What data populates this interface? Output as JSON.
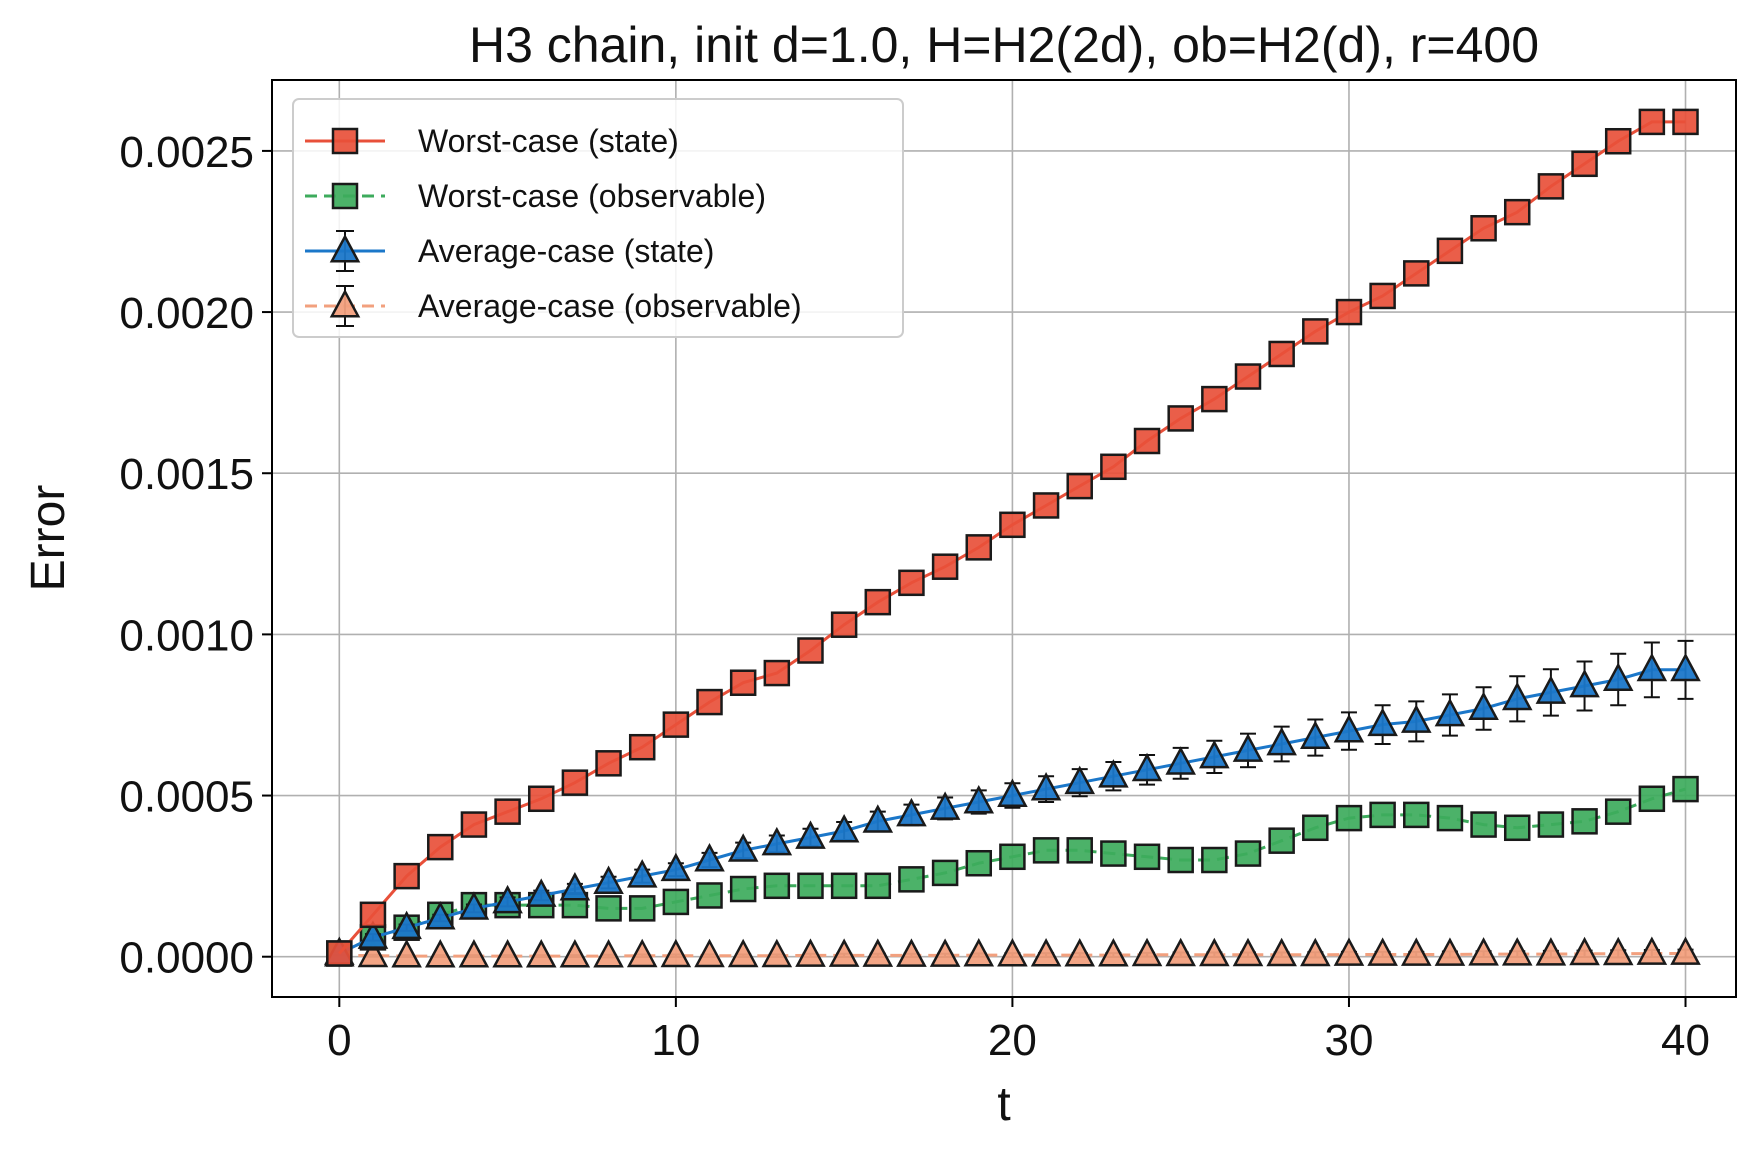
{
  "chart_data": {
    "type": "line",
    "title": "H3 chain, init d=1.0, H=H2(2d), ob=H2(d), r=400",
    "xlabel": "t",
    "ylabel": "Error",
    "xlim": [
      -2,
      41.5
    ],
    "ylim": [
      -0.000125,
      0.00272
    ],
    "xticks": [
      0,
      10,
      20,
      30,
      40
    ],
    "xtick_labels": [
      "0",
      "10",
      "20",
      "30",
      "40"
    ],
    "yticks": [
      0,
      0.0005,
      0.001,
      0.0015,
      0.002,
      0.0025
    ],
    "ytick_labels": [
      "0.0000",
      "0.0005",
      "0.0010",
      "0.0015",
      "0.0020",
      "0.0025"
    ],
    "grid": true,
    "legend_position": "top-left",
    "x": [
      0,
      1,
      2,
      3,
      4,
      5,
      6,
      7,
      8,
      9,
      10,
      11,
      12,
      13,
      14,
      15,
      16,
      17,
      18,
      19,
      20,
      21,
      22,
      23,
      24,
      25,
      26,
      27,
      28,
      29,
      30,
      31,
      32,
      33,
      34,
      35,
      36,
      37,
      38,
      39,
      40
    ],
    "series": [
      {
        "name": "Worst-case (state)",
        "color": "#e8503a",
        "marker": "square",
        "linestyle": "solid",
        "values": [
          1e-05,
          0.00013,
          0.00025,
          0.00034,
          0.00041,
          0.00045,
          0.00049,
          0.00054,
          0.0006,
          0.00065,
          0.00072,
          0.00079,
          0.00085,
          0.00088,
          0.00095,
          0.00103,
          0.0011,
          0.00116,
          0.00121,
          0.00127,
          0.00134,
          0.0014,
          0.00146,
          0.00152,
          0.0016,
          0.00167,
          0.00173,
          0.0018,
          0.00187,
          0.00194,
          0.002,
          0.00205,
          0.00212,
          0.00219,
          0.00226,
          0.00231,
          0.00239,
          0.00246,
          0.00253,
          0.00259,
          0.00259
        ]
      },
      {
        "name": "Worst-case (observable)",
        "color": "#3dab5c",
        "marker": "square",
        "linestyle": "dashed",
        "values": [
          1e-05,
          6e-05,
          9e-05,
          0.00013,
          0.00016,
          0.00016,
          0.00016,
          0.00016,
          0.00015,
          0.00015,
          0.00017,
          0.00019,
          0.00021,
          0.00022,
          0.00022,
          0.00022,
          0.00022,
          0.00024,
          0.00026,
          0.00029,
          0.00031,
          0.00033,
          0.00033,
          0.00032,
          0.00031,
          0.0003,
          0.0003,
          0.00032,
          0.00036,
          0.0004,
          0.00043,
          0.00044,
          0.00044,
          0.00043,
          0.00041,
          0.0004,
          0.00041,
          0.00042,
          0.00045,
          0.00049,
          0.00052
        ]
      },
      {
        "name": "Average-case (state)",
        "color": "#1b77c9",
        "marker": "triangle",
        "linestyle": "solid",
        "values": [
          1e-05,
          6e-05,
          9e-05,
          0.00012,
          0.00015,
          0.00017,
          0.00019,
          0.00021,
          0.00023,
          0.00025,
          0.00027,
          0.0003,
          0.00033,
          0.00035,
          0.00037,
          0.00039,
          0.00042,
          0.00044,
          0.00046,
          0.00048,
          0.0005,
          0.00052,
          0.00054,
          0.00056,
          0.00058,
          0.0006,
          0.00062,
          0.00064,
          0.00066,
          0.00068,
          0.0007,
          0.00072,
          0.00073,
          0.00075,
          0.00077,
          0.0008,
          0.00082,
          0.00084,
          0.00086,
          0.00089,
          0.00089
        ],
        "errors": [
          5e-06,
          1e-05,
          1e-05,
          1e-05,
          1.2e-05,
          1.4e-05,
          1.5e-05,
          1.6e-05,
          1.8e-05,
          2e-05,
          2e-05,
          2.2e-05,
          2.4e-05,
          2.6e-05,
          2.7e-05,
          2.8e-05,
          3e-05,
          3.2e-05,
          3.4e-05,
          3.6e-05,
          3.8e-05,
          4e-05,
          4.2e-05,
          4.4e-05,
          4.6e-05,
          4.8e-05,
          5e-05,
          5.2e-05,
          5.4e-05,
          5.6e-05,
          5.8e-05,
          6e-05,
          6.2e-05,
          6.4e-05,
          6.6e-05,
          7e-05,
          7.2e-05,
          7.6e-05,
          8e-05,
          8.5e-05,
          9e-05
        ]
      },
      {
        "name": "Average-case (observable)",
        "color": "#f2a07e",
        "marker": "triangle",
        "linestyle": "dashed",
        "values": [
          5e-06,
          3e-06,
          2e-06,
          2e-06,
          2e-06,
          2e-06,
          2e-06,
          2e-06,
          2e-06,
          3e-06,
          3e-06,
          3e-06,
          3e-06,
          3e-06,
          4e-06,
          4e-06,
          4e-06,
          4e-06,
          4e-06,
          5e-06,
          5e-06,
          5e-06,
          5e-06,
          5e-06,
          6e-06,
          6e-06,
          6e-06,
          6e-06,
          6e-06,
          6e-06,
          7e-06,
          7e-06,
          7e-06,
          7e-06,
          8e-06,
          8e-06,
          8e-06,
          9e-06,
          9e-06,
          1e-05,
          1e-05
        ],
        "errors": [
          2e-06,
          3e-06,
          3e-06,
          3e-06,
          3e-06,
          3e-06,
          3e-06,
          3e-06,
          4e-06,
          4e-06,
          4e-06,
          4e-06,
          4e-06,
          4e-06,
          5e-06,
          5e-06,
          5e-06,
          5e-06,
          5e-06,
          5e-06,
          6e-06,
          6e-06,
          6e-06,
          6e-06,
          6e-06,
          7e-06,
          7e-06,
          7e-06,
          7e-06,
          8e-06,
          8e-06,
          8e-06,
          8e-06,
          9e-06,
          9e-06,
          9e-06,
          1e-05,
          1e-05,
          1.1e-05,
          1.1e-05,
          1.2e-05
        ]
      }
    ]
  }
}
